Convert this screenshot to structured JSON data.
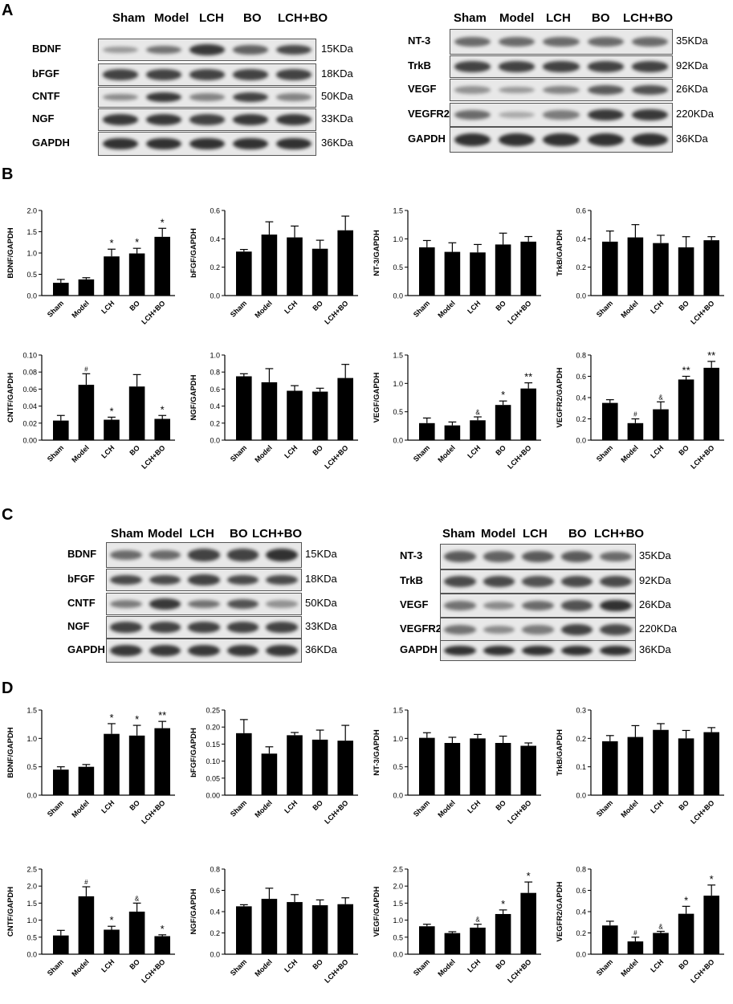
{
  "panels": {
    "A": "A",
    "B": "B",
    "C": "C",
    "D": "D"
  },
  "groups": [
    "Sham",
    "Model",
    "LCH",
    "BO",
    "LCH+BO"
  ],
  "blots": {
    "A_left": {
      "rows": [
        {
          "label": "BDNF",
          "kda": "15KDa",
          "intensity": [
            0.3,
            0.55,
            0.9,
            0.65,
            0.8
          ]
        },
        {
          "label": "bFGF",
          "kda": "18KDa",
          "intensity": [
            0.85,
            0.85,
            0.85,
            0.85,
            0.85
          ]
        },
        {
          "label": "CNTF",
          "kda": "50KDa",
          "intensity": [
            0.4,
            0.9,
            0.45,
            0.85,
            0.45
          ]
        },
        {
          "label": "NGF",
          "kda": "33KDa",
          "intensity": [
            0.9,
            0.9,
            0.85,
            0.9,
            0.9
          ]
        },
        {
          "label": "GAPDH",
          "kda": "36KDa",
          "intensity": [
            0.95,
            0.95,
            0.95,
            0.95,
            0.95
          ]
        }
      ]
    },
    "A_right": {
      "rows": [
        {
          "label": "NT-3",
          "kda": "35KDa",
          "intensity": [
            0.6,
            0.6,
            0.6,
            0.6,
            0.6
          ]
        },
        {
          "label": "TrkB",
          "kda": "92KDa",
          "intensity": [
            0.85,
            0.85,
            0.85,
            0.85,
            0.85
          ]
        },
        {
          "label": "VEGF",
          "kda": "26KDa",
          "intensity": [
            0.35,
            0.3,
            0.45,
            0.7,
            0.75
          ]
        },
        {
          "label": "VEGFR2",
          "kda": "220KDa",
          "intensity": [
            0.6,
            0.2,
            0.5,
            0.9,
            0.9
          ]
        },
        {
          "label": "GAPDH",
          "kda": "36KDa",
          "intensity": [
            0.95,
            0.95,
            0.95,
            0.95,
            0.95
          ]
        }
      ]
    },
    "C_left": {
      "rows": [
        {
          "label": "BDNF",
          "kda": "15KDa",
          "intensity": [
            0.6,
            0.6,
            0.85,
            0.85,
            0.95
          ]
        },
        {
          "label": "bFGF",
          "kda": "18KDa",
          "intensity": [
            0.8,
            0.8,
            0.85,
            0.8,
            0.8
          ]
        },
        {
          "label": "CNTF",
          "kda": "50KDa",
          "intensity": [
            0.5,
            0.9,
            0.55,
            0.75,
            0.35
          ]
        },
        {
          "label": "NGF",
          "kda": "33KDa",
          "intensity": [
            0.85,
            0.85,
            0.85,
            0.85,
            0.85
          ]
        },
        {
          "label": "GAPDH",
          "kda": "36KDa",
          "intensity": [
            0.9,
            0.9,
            0.9,
            0.9,
            0.9
          ]
        }
      ]
    },
    "C_right": {
      "rows": [
        {
          "label": "NT-3",
          "kda": "35KDa",
          "intensity": [
            0.7,
            0.65,
            0.7,
            0.7,
            0.6
          ]
        },
        {
          "label": "TrkB",
          "kda": "92KDa",
          "intensity": [
            0.8,
            0.8,
            0.75,
            0.8,
            0.8
          ]
        },
        {
          "label": "VEGF",
          "kda": "26KDa",
          "intensity": [
            0.55,
            0.4,
            0.6,
            0.75,
            0.95
          ]
        },
        {
          "label": "VEGFR2",
          "kda": "220KDa",
          "intensity": [
            0.55,
            0.4,
            0.5,
            0.85,
            0.8
          ]
        },
        {
          "label": "GAPDH",
          "kda": "36KDa",
          "intensity": [
            0.95,
            0.95,
            0.95,
            0.95,
            0.95
          ]
        }
      ]
    }
  },
  "chart_data": [
    {
      "panel": "B",
      "type": "bar",
      "ylabel": "BDNF/GAPDH",
      "ylim": [
        0,
        2.0
      ],
      "ticks": [
        "0.0",
        "0.5",
        "1.0",
        "1.5",
        "2.0"
      ],
      "categories": [
        "Sham",
        "Model",
        "LCH",
        "BO",
        "LCH+BO"
      ],
      "values": [
        0.3,
        0.38,
        0.92,
        0.99,
        1.38
      ],
      "errors": [
        0.08,
        0.04,
        0.17,
        0.12,
        0.2
      ],
      "annotations": [
        "",
        "",
        "*",
        "*",
        "*"
      ]
    },
    {
      "panel": "B",
      "type": "bar",
      "ylabel": "bFGF/GAPDH",
      "ylim": [
        0,
        0.6
      ],
      "ticks": [
        "0.0",
        "0.2",
        "0.4",
        "0.6"
      ],
      "categories": [
        "Sham",
        "Model",
        "LCH",
        "BO",
        "LCH+BO"
      ],
      "values": [
        0.31,
        0.43,
        0.41,
        0.33,
        0.46
      ],
      "errors": [
        0.015,
        0.09,
        0.08,
        0.06,
        0.1
      ],
      "annotations": [
        "",
        "",
        "",
        "",
        ""
      ]
    },
    {
      "panel": "B",
      "type": "bar",
      "ylabel": "NT-3/GAPDH",
      "ylim": [
        0,
        1.5
      ],
      "ticks": [
        "0.0",
        "0.5",
        "1.0",
        "1.5"
      ],
      "categories": [
        "Sham",
        "Model",
        "LCH",
        "BO",
        "LCH+BO"
      ],
      "values": [
        0.85,
        0.77,
        0.76,
        0.9,
        0.95
      ],
      "errors": [
        0.12,
        0.16,
        0.14,
        0.2,
        0.09
      ],
      "annotations": [
        "",
        "",
        "",
        "",
        ""
      ]
    },
    {
      "panel": "B",
      "type": "bar",
      "ylabel": "TrkB/GAPDH",
      "ylim": [
        0,
        0.6
      ],
      "ticks": [
        "0.0",
        "0.2",
        "0.4",
        "0.6"
      ],
      "categories": [
        "Sham",
        "Model",
        "LCH",
        "BO",
        "LCH+BO"
      ],
      "values": [
        0.38,
        0.41,
        0.37,
        0.34,
        0.39
      ],
      "errors": [
        0.075,
        0.09,
        0.055,
        0.075,
        0.025
      ],
      "annotations": [
        "",
        "",
        "",
        "",
        ""
      ]
    },
    {
      "panel": "B",
      "type": "bar",
      "ylabel": "CNTF/GAPDH",
      "ylim": [
        0,
        0.1
      ],
      "ticks": [
        "0.00",
        "0.02",
        "0.04",
        "0.06",
        "0.08",
        "0.10"
      ],
      "categories": [
        "Sham",
        "Model",
        "LCH",
        "BO",
        "LCH+BO"
      ],
      "values": [
        0.023,
        0.065,
        0.024,
        0.063,
        0.025
      ],
      "errors": [
        0.006,
        0.013,
        0.003,
        0.014,
        0.004
      ],
      "annotations": [
        "",
        "#",
        "*",
        "",
        "*"
      ]
    },
    {
      "panel": "B",
      "type": "bar",
      "ylabel": "NGF/GAPDH",
      "ylim": [
        0,
        1.0
      ],
      "ticks": [
        "0.0",
        "0.2",
        "0.4",
        "0.6",
        "0.8",
        "1.0"
      ],
      "categories": [
        "Sham",
        "Model",
        "LCH",
        "BO",
        "LCH+BO"
      ],
      "values": [
        0.75,
        0.68,
        0.58,
        0.57,
        0.73
      ],
      "errors": [
        0.03,
        0.16,
        0.06,
        0.04,
        0.16
      ],
      "annotations": [
        "",
        "",
        "",
        "",
        ""
      ]
    },
    {
      "panel": "B",
      "type": "bar",
      "ylabel": "VEGF/GAPDH",
      "ylim": [
        0,
        1.5
      ],
      "ticks": [
        "0.0",
        "0.5",
        "1.0",
        "1.5"
      ],
      "categories": [
        "Sham",
        "Model",
        "LCH",
        "BO",
        "LCH+BO"
      ],
      "values": [
        0.3,
        0.26,
        0.35,
        0.62,
        0.91
      ],
      "errors": [
        0.09,
        0.06,
        0.06,
        0.07,
        0.1
      ],
      "annotations": [
        "",
        "",
        "&",
        "*",
        "**"
      ]
    },
    {
      "panel": "B",
      "type": "bar",
      "ylabel": "VEGFR2/GAPDH",
      "ylim": [
        0,
        0.8
      ],
      "ticks": [
        "0.0",
        "0.2",
        "0.4",
        "0.6",
        "0.8"
      ],
      "categories": [
        "Sham",
        "Model",
        "LCH",
        "BO",
        "LCH+BO"
      ],
      "values": [
        0.35,
        0.16,
        0.29,
        0.57,
        0.68
      ],
      "errors": [
        0.03,
        0.04,
        0.07,
        0.03,
        0.06
      ],
      "annotations": [
        "",
        "#",
        "&",
        "**",
        "**"
      ]
    },
    {
      "panel": "D",
      "type": "bar",
      "ylabel": "BDNF/GAPDH",
      "ylim": [
        0,
        1.5
      ],
      "ticks": [
        "0.0",
        "0.5",
        "1.0",
        "1.5"
      ],
      "categories": [
        "Sham",
        "Model",
        "LCH",
        "BO",
        "LCH+BO"
      ],
      "values": [
        0.45,
        0.5,
        1.08,
        1.05,
        1.18
      ],
      "errors": [
        0.05,
        0.04,
        0.18,
        0.18,
        0.12
      ],
      "annotations": [
        "",
        "",
        "*",
        "*",
        "**"
      ]
    },
    {
      "panel": "D",
      "type": "bar",
      "ylabel": "bFGF/GAPDH",
      "ylim": [
        0,
        0.25
      ],
      "ticks": [
        "0.00",
        "0.05",
        "0.10",
        "0.15",
        "0.20",
        "0.25"
      ],
      "categories": [
        "Sham",
        "Model",
        "LCH",
        "BO",
        "LCH+BO"
      ],
      "values": [
        0.182,
        0.122,
        0.176,
        0.163,
        0.16
      ],
      "errors": [
        0.04,
        0.02,
        0.008,
        0.028,
        0.045
      ],
      "annotations": [
        "",
        "",
        "",
        "",
        ""
      ]
    },
    {
      "panel": "D",
      "type": "bar",
      "ylabel": "NT-3/GAPDH",
      "ylim": [
        0,
        1.5
      ],
      "ticks": [
        "0.0",
        "0.5",
        "1.0",
        "1.5"
      ],
      "categories": [
        "Sham",
        "Model",
        "LCH",
        "BO",
        "LCH+BO"
      ],
      "values": [
        1.01,
        0.92,
        1.0,
        0.92,
        0.87
      ],
      "errors": [
        0.09,
        0.1,
        0.07,
        0.12,
        0.05
      ],
      "annotations": [
        "",
        "",
        "",
        "",
        ""
      ]
    },
    {
      "panel": "D",
      "type": "bar",
      "ylabel": "TrkB/GAPDH",
      "ylim": [
        0,
        0.3
      ],
      "ticks": [
        "0.0",
        "0.1",
        "0.2",
        "0.3"
      ],
      "categories": [
        "Sham",
        "Model",
        "LCH",
        "BO",
        "LCH+BO"
      ],
      "values": [
        0.19,
        0.205,
        0.23,
        0.2,
        0.222
      ],
      "errors": [
        0.02,
        0.04,
        0.022,
        0.028,
        0.016
      ],
      "annotations": [
        "",
        "",
        "",
        "",
        ""
      ]
    },
    {
      "panel": "D",
      "type": "bar",
      "ylabel": "CNTF/GAPDH",
      "ylim": [
        0,
        2.5
      ],
      "ticks": [
        "0.0",
        "0.5",
        "1.0",
        "1.5",
        "2.0",
        "2.5"
      ],
      "categories": [
        "Sham",
        "Model",
        "LCH",
        "BO",
        "LCH+BO"
      ],
      "values": [
        0.55,
        1.7,
        0.72,
        1.25,
        0.53
      ],
      "errors": [
        0.15,
        0.28,
        0.1,
        0.25,
        0.04
      ],
      "annotations": [
        "",
        "#",
        "*",
        "&",
        "*"
      ]
    },
    {
      "panel": "D",
      "type": "bar",
      "ylabel": "NGF/GAPDH",
      "ylim": [
        0,
        0.8
      ],
      "ticks": [
        "0.0",
        "0.2",
        "0.4",
        "0.6",
        "0.8"
      ],
      "categories": [
        "Sham",
        "Model",
        "LCH",
        "BO",
        "LCH+BO"
      ],
      "values": [
        0.45,
        0.52,
        0.49,
        0.46,
        0.47
      ],
      "errors": [
        0.015,
        0.1,
        0.07,
        0.05,
        0.06
      ],
      "annotations": [
        "",
        "",
        "",
        "",
        ""
      ]
    },
    {
      "panel": "D",
      "type": "bar",
      "ylabel": "VEGF/GAPDH",
      "ylim": [
        0,
        2.5
      ],
      "ticks": [
        "0.0",
        "0.5",
        "1.0",
        "1.5",
        "2.0",
        "2.5"
      ],
      "categories": [
        "Sham",
        "Model",
        "LCH",
        "BO",
        "LCH+BO"
      ],
      "values": [
        0.82,
        0.62,
        0.78,
        1.18,
        1.8
      ],
      "errors": [
        0.06,
        0.04,
        0.1,
        0.12,
        0.32
      ],
      "annotations": [
        "",
        "",
        "&",
        "*",
        "*"
      ]
    },
    {
      "panel": "D",
      "type": "bar",
      "ylabel": "VEGFR2/GAPDH",
      "ylim": [
        0,
        0.8
      ],
      "ticks": [
        "0.0",
        "0.2",
        "0.4",
        "0.6",
        "0.8"
      ],
      "categories": [
        "Sham",
        "Model",
        "LCH",
        "BO",
        "LCH+BO"
      ],
      "values": [
        0.27,
        0.12,
        0.2,
        0.38,
        0.55
      ],
      "errors": [
        0.04,
        0.04,
        0.015,
        0.07,
        0.1
      ],
      "annotations": [
        "",
        "#",
        "&",
        "*",
        "*"
      ]
    }
  ]
}
